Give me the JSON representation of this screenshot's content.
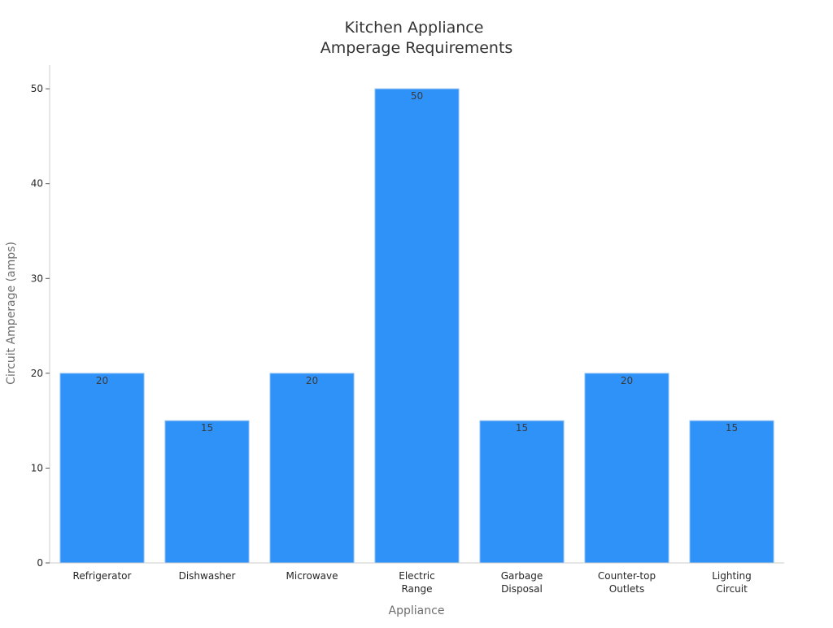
{
  "chart_data": {
    "type": "bar",
    "title": [
      "Kitchen Appliance",
      "Amperage Requirements"
    ],
    "xlabel": "Appliance",
    "ylabel": "Circuit Amperage (amps)",
    "categories": [
      [
        "Refrigerator"
      ],
      [
        "Dishwasher"
      ],
      [
        "Microwave"
      ],
      [
        "Electric",
        "Range"
      ],
      [
        "Garbage",
        "Disposal"
      ],
      [
        "Counter-top",
        "Outlets"
      ],
      [
        "Lighting",
        "Circuit"
      ]
    ],
    "values": [
      20,
      15,
      20,
      50,
      15,
      20,
      15
    ],
    "ylim": [
      0,
      52.5
    ],
    "yticks": [
      0,
      10,
      20,
      30,
      40,
      50
    ],
    "grid": false,
    "bar_color": "#2e92f8",
    "axis_color": "#cccccc"
  }
}
